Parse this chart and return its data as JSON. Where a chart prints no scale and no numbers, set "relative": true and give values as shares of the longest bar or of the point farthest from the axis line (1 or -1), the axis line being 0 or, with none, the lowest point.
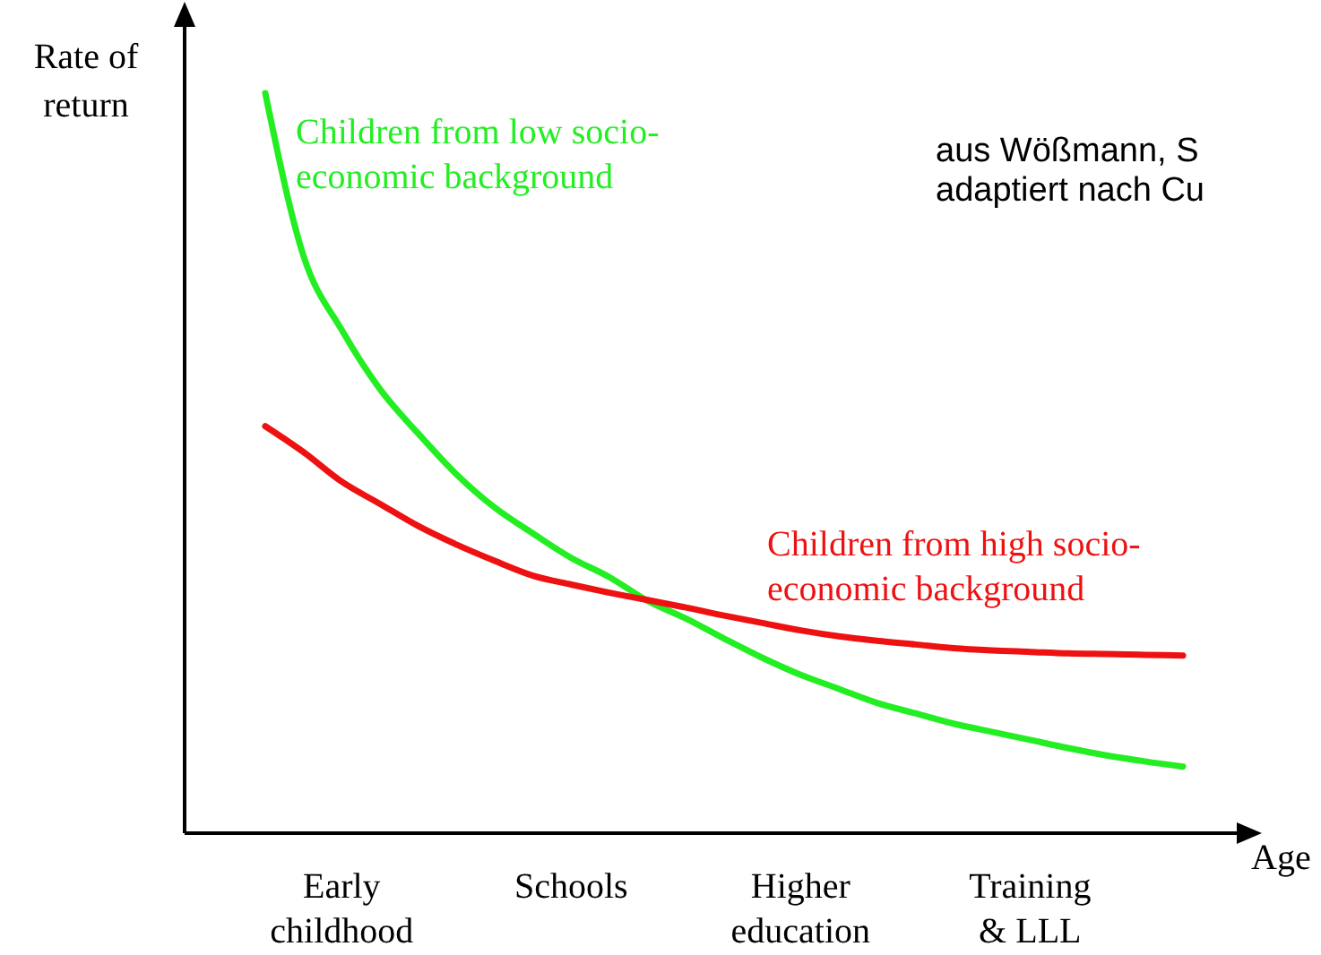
{
  "chart_data": {
    "type": "line",
    "relative": true,
    "ylabel": "Rate of\nreturn",
    "xlabel": "Age",
    "categories": [
      null,
      null,
      "Early\nchildhood",
      null,
      null,
      null,
      null,
      null,
      "Schools",
      null,
      null,
      null,
      null,
      null,
      "Higher\neducation",
      null,
      null,
      null,
      null,
      null,
      "Training\n& LLL",
      null,
      null,
      null,
      null
    ],
    "series": [
      {
        "name": "Children from low socio-economic background",
        "color": "#22ee22",
        "values": [
          1.0,
          0.78,
          0.68,
          0.6,
          0.54,
          0.485,
          0.44,
          0.405,
          0.372,
          0.346,
          0.314,
          0.29,
          0.263,
          0.237,
          0.214,
          0.195,
          0.176,
          0.162,
          0.148,
          0.137,
          0.126,
          0.115,
          0.105,
          0.097,
          0.09
        ]
      },
      {
        "name": "Children from high socio-economic background",
        "color": "#ee1111",
        "values": [
          0.55,
          0.515,
          0.475,
          0.445,
          0.415,
          0.39,
          0.368,
          0.348,
          0.336,
          0.325,
          0.315,
          0.305,
          0.294,
          0.284,
          0.274,
          0.266,
          0.26,
          0.255,
          0.25,
          0.247,
          0.245,
          0.243,
          0.242,
          0.241,
          0.24
        ]
      }
    ],
    "annotations": [
      "aus Wößmann, S",
      "adaptiert nach Cu"
    ],
    "marker": "none",
    "line_style": "solid"
  }
}
